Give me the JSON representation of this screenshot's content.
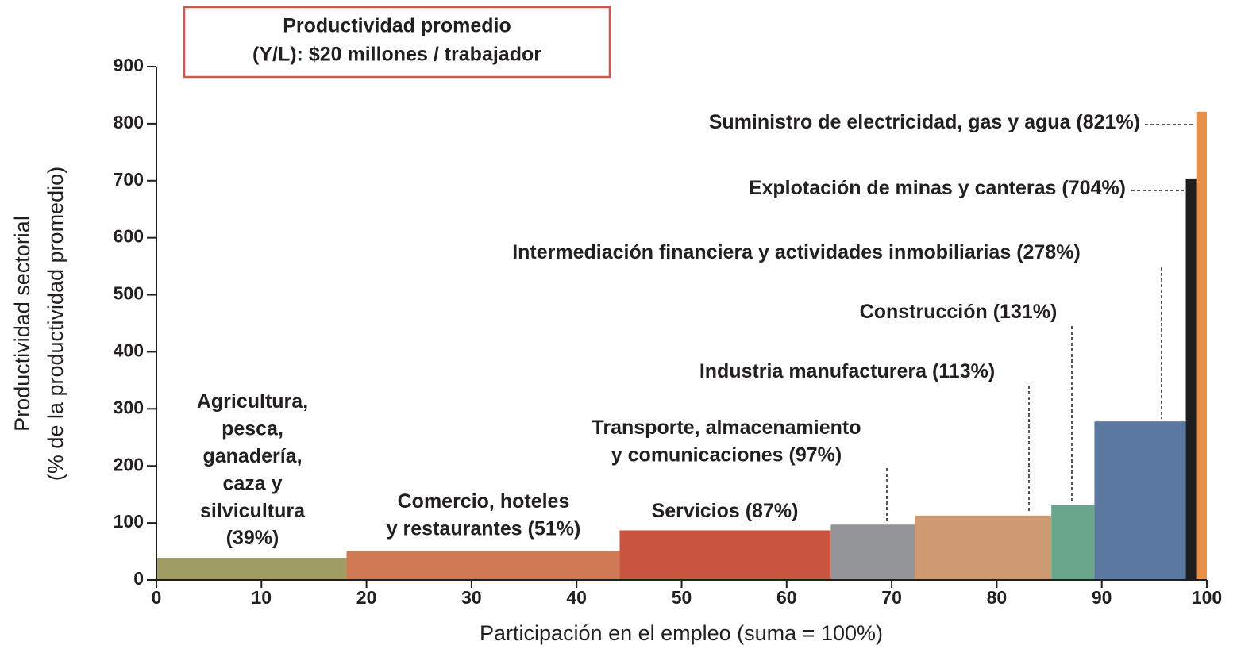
{
  "chart_data": {
    "type": "variable-width-bar",
    "annotation": [
      "Productividad promedio",
      "(Y/L): $20 millones / trabajador"
    ],
    "x_label": "Participación en el empleo (suma = 100%)",
    "y_label": [
      "Productividad sectorial",
      "(% de la productividad promedio)"
    ],
    "categories": [
      [
        "Agricultura,",
        "pesca,",
        "ganadería,",
        "caza y",
        "silvicultura"
      ],
      [
        "Comercio, hoteles",
        "y restaurantes"
      ],
      [
        "Servicios"
      ],
      [
        "Transporte, almacenamiento",
        "y comunicaciones"
      ],
      [
        "Industria manufacturera"
      ],
      [
        "Construcción"
      ],
      [
        "Intermediación financiera y actividades inmobiliarias"
      ],
      [
        "Explotación de minas y canteras"
      ],
      [
        "Suministro de electricidad, gas y agua"
      ]
    ],
    "widths": [
      18.1,
      26.0,
      20.1,
      8.0,
      13.0,
      4.1,
      8.7,
      1.0,
      1.0
    ],
    "values": [
      39,
      51,
      87,
      97,
      113,
      131,
      278,
      704,
      821
    ],
    "value_labels": [
      "(39%)",
      "(51%)",
      "(87%)",
      "(97%)",
      "(113%)",
      "(131%)",
      "(278%)",
      "(704%)",
      "(821%)"
    ],
    "colors": [
      "#a09d64",
      "#cf7a55",
      "#c95440",
      "#939497",
      "#cf9a72",
      "#6aa68b",
      "#5b78a0",
      "#1e1e1e",
      "#e88f48"
    ],
    "xlim": [
      0,
      100
    ],
    "xticks": [
      0,
      10,
      20,
      30,
      40,
      50,
      60,
      70,
      80,
      90,
      100
    ],
    "ylim": [
      0,
      900
    ],
    "yticks": [
      0,
      100,
      200,
      300,
      400,
      500,
      600,
      700,
      800,
      900
    ]
  }
}
